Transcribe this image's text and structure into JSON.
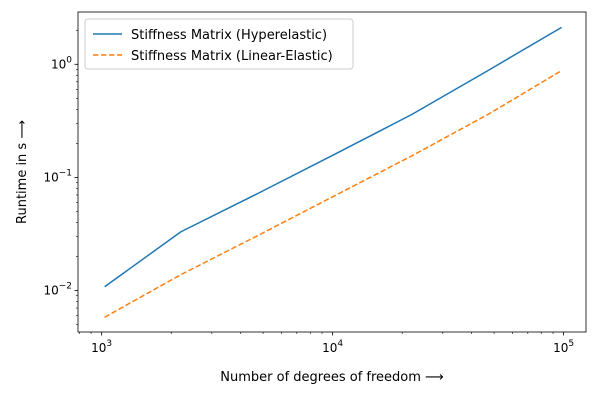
{
  "chart_data": {
    "type": "line",
    "xscale": "log",
    "yscale": "log",
    "xlim": [
      790,
      125000
    ],
    "ylim": [
      0.0043,
      2.9
    ],
    "xlabel": "Number of degrees of freedom ⟶",
    "ylabel": "Runtime in s ⟶",
    "grid": false,
    "legend_position": "top-left",
    "x_ticks": [
      {
        "value": 1000,
        "base": "10",
        "exp": "3"
      },
      {
        "value": 10000,
        "base": "10",
        "exp": "4"
      },
      {
        "value": 100000,
        "base": "10",
        "exp": "5"
      }
    ],
    "y_ticks": [
      {
        "value": 0.01,
        "base": "10",
        "exp": "−2"
      },
      {
        "value": 0.1,
        "base": "10",
        "exp": "−1"
      },
      {
        "value": 1,
        "base": "10",
        "exp": "0"
      }
    ],
    "series": [
      {
        "name": "Stiffness Matrix (Hyperelastic)",
        "color": "#1f77b4",
        "style": "solid",
        "x": [
          1030,
          2200,
          4800,
          10500,
          22000,
          47000,
          98000
        ],
        "y": [
          0.0108,
          0.033,
          0.073,
          0.165,
          0.36,
          0.88,
          2.12
        ]
      },
      {
        "name": "Stiffness Matrix (Linear-Elastic)",
        "color": "#ff7f0e",
        "style": "dashed",
        "x": [
          1030,
          2200,
          4800,
          10500,
          22000,
          47000,
          98000
        ],
        "y": [
          0.0058,
          0.0138,
          0.031,
          0.071,
          0.155,
          0.36,
          0.88
        ]
      }
    ]
  }
}
